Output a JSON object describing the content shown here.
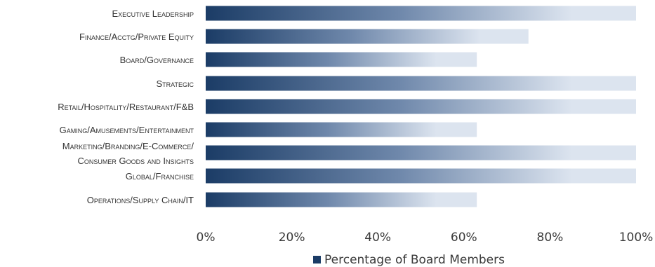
{
  "chart_data": {
    "type": "bar",
    "orientation": "horizontal",
    "categories": [
      "Executive Leadership",
      "Finance/Acctg/Private Equity",
      "Board/Governance",
      "Strategic",
      "Retail/Hospitality/Restaurant/F&B",
      "Gaming/Amusements/Entertainment",
      "Marketing/Branding/E-Commerce/ Consumer Goods and Insights",
      "Global/Franchise",
      "Operations/Supply Chain/IT"
    ],
    "category_lines": [
      [
        "Executive Leadership"
      ],
      [
        "Finance/Acctg/Private Equity"
      ],
      [
        "Board/Governance"
      ],
      [
        "Strategic"
      ],
      [
        "Retail/Hospitality/Restaurant/F&B"
      ],
      [
        "Gaming/Amusements/Entertainment"
      ],
      [
        "Marketing/Branding/E-Commerce/",
        "Consumer Goods and Insights"
      ],
      [
        "Global/Franchise"
      ],
      [
        "Operations/Supply Chain/IT"
      ]
    ],
    "series": [
      {
        "name": "Percentage of Board Members",
        "values": [
          100,
          75,
          63,
          100,
          100,
          63,
          100,
          100,
          63
        ]
      }
    ],
    "xlim": [
      0,
      100
    ],
    "x_ticks": [
      "0%",
      "20%",
      "40%",
      "60%",
      "80%",
      "100%"
    ],
    "grid": false,
    "legend_position": "bottom",
    "bar_color": "#1b3c66",
    "bar_color_light": "#dce4ef"
  }
}
